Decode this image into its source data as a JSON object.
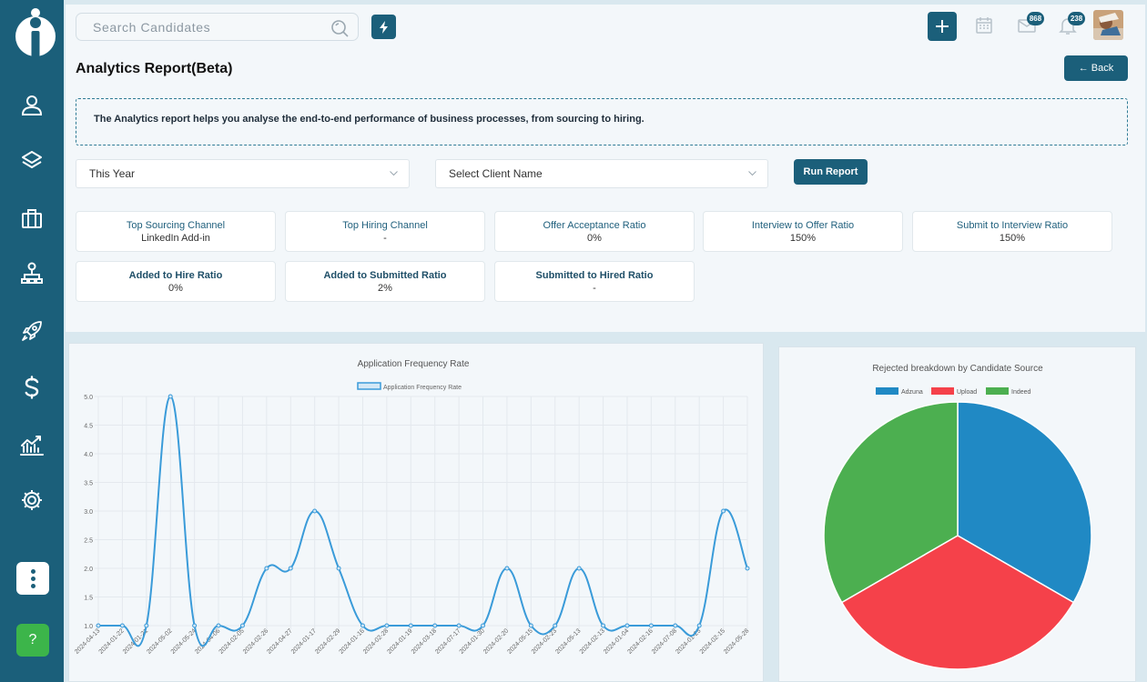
{
  "search": {
    "placeholder": "Search Candidates"
  },
  "header": {
    "title": "Analytics Report(Beta)",
    "back_label": "← Back",
    "mail_count": "868",
    "notif_count": "238"
  },
  "info": {
    "text": "The Analytics report helps you analyse the end-to-end performance of business processes, from sourcing to hiring."
  },
  "filters": {
    "period": "This Year",
    "client_placeholder": "Select Client Name",
    "run_label": "Run Report"
  },
  "metrics_row1": [
    {
      "label": "Top Sourcing Channel",
      "value": "LinkedIn Add-in"
    },
    {
      "label": "Top Hiring Channel",
      "value": "-"
    },
    {
      "label": "Offer Acceptance Ratio",
      "value": "0%"
    },
    {
      "label": "Interview to Offer Ratio",
      "value": "150%"
    },
    {
      "label": "Submit to Interview Ratio",
      "value": "150%"
    }
  ],
  "metrics_row2": [
    {
      "label": "Added to Hire Ratio",
      "value": "0%"
    },
    {
      "label": "Added to Submitted Ratio",
      "value": "2%"
    },
    {
      "label": "Submitted to Hired Ratio",
      "value": "-"
    }
  ],
  "colors": {
    "primary": "#1b5f7a",
    "help": "#3cb54a",
    "line": "#3a9bd9",
    "adzuna": "#2089c4",
    "upload": "#f5414a",
    "indeed": "#4caf50"
  },
  "sidebar_icons": [
    "user-icon",
    "layers-icon",
    "briefcase-icon",
    "org-chart-icon",
    "rocket-icon",
    "dollar-icon",
    "analytics-icon",
    "gear-icon"
  ],
  "chart_data": [
    {
      "type": "line",
      "title": "Application Frequency Rate",
      "series": [
        {
          "name": "Application Frequency Rate",
          "values": [
            1,
            1,
            1,
            5,
            1,
            1,
            1,
            2,
            2,
            3,
            2,
            1,
            1,
            1,
            1,
            1,
            1,
            2,
            1,
            1,
            2,
            1,
            1,
            1,
            1,
            1,
            3,
            2
          ]
        }
      ],
      "categories": [
        "2024-04-13",
        "2024-01-22",
        "2024-01-21",
        "2024-05-02",
        "2024-05-24",
        "2024-04-06",
        "2024-02-05",
        "2024-02-26",
        "2024-04-27",
        "2024-01-17",
        "2024-02-29",
        "2024-01-16",
        "2024-02-28",
        "2024-01-19",
        "2024-03-18",
        "2024-07-17",
        "2024-01-30",
        "2024-02-20",
        "2024-05-15",
        "2024-02-23",
        "2024-05-13",
        "2024-02-13",
        "2024-01-04",
        "2024-02-16",
        "2024-07-08",
        "2024-01-25",
        "2024-02-15",
        "2024-05-28"
      ],
      "ylim": [
        1,
        5
      ],
      "yticks": [
        "1.0",
        "1.5",
        "2.0",
        "2.5",
        "3.0",
        "3.5",
        "4.0",
        "4.5",
        "5.0"
      ],
      "grid": true,
      "legend": "top"
    },
    {
      "type": "pie",
      "title": "Rejected breakdown by Candidate Source",
      "labels": [
        "Adzuna",
        "Upload",
        "Indeed"
      ],
      "values": [
        1,
        1,
        1
      ],
      "legend": "top"
    }
  ]
}
